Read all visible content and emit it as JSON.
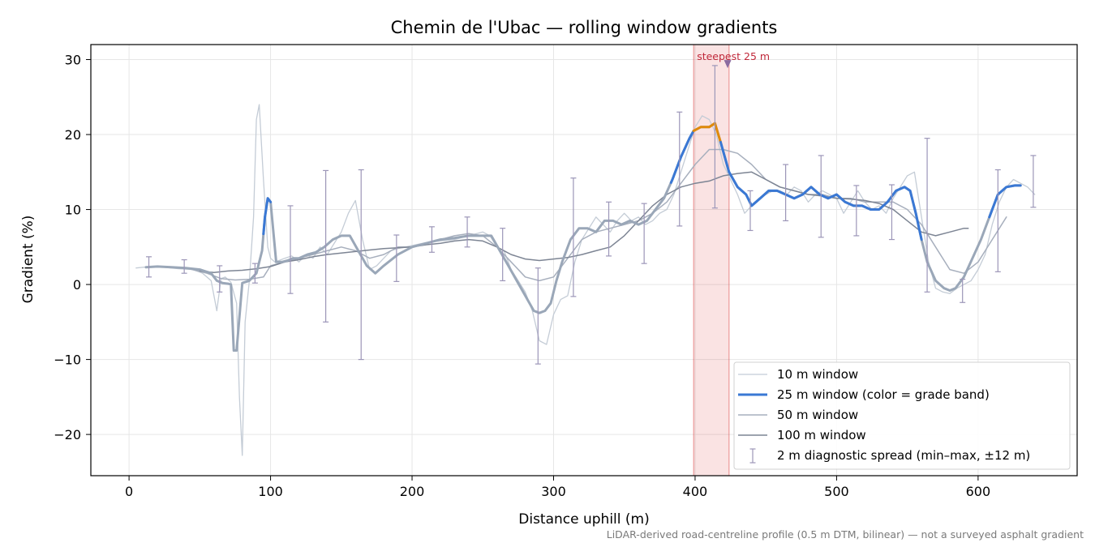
{
  "chart_data": {
    "type": "line",
    "title": "Chemin de l'Ubac — rolling window gradients",
    "xlabel": "Distance uphill (m)",
    "ylabel": "Gradient (%)",
    "xlim": [
      -27,
      670
    ],
    "ylim": [
      -25.5,
      32
    ],
    "xticks": [
      0,
      100,
      200,
      300,
      400,
      500,
      600
    ],
    "yticks": [
      -20,
      -10,
      0,
      10,
      20,
      30
    ],
    "grid": true,
    "legend_position": "lower-right",
    "footnote": "LiDAR-derived road-centreline profile (0.5 m DTM, bilinear) — not a surveyed asphalt gradient",
    "annotation": {
      "text": "steepest 25 m",
      "x": 423,
      "y": 29.5
    },
    "highlight": {
      "x0": 399,
      "x1": 424,
      "color": "#d62728"
    },
    "colors": {
      "band_blue": "#3a78d4",
      "band_orange": "#e08a0b",
      "marker": "#8a6aa0",
      "annotation": "#c0283a"
    },
    "series": [
      {
        "name": "10 m window",
        "color": "#c4ccd6",
        "width": 1.3,
        "x": [
          5,
          15,
          25,
          35,
          45,
          52,
          58,
          62,
          65,
          68,
          72,
          76,
          78,
          80,
          82,
          85,
          88,
          90,
          92,
          95,
          98,
          100,
          103,
          106,
          110,
          115,
          120,
          125,
          130,
          135,
          140,
          145,
          150,
          155,
          160,
          165,
          170,
          175,
          180,
          185,
          190,
          200,
          210,
          220,
          230,
          240,
          250,
          255,
          260,
          265,
          270,
          275,
          280,
          285,
          290,
          295,
          300,
          305,
          310,
          315,
          320,
          325,
          330,
          335,
          340,
          345,
          350,
          355,
          360,
          365,
          370,
          375,
          380,
          385,
          390,
          395,
          400,
          405,
          410,
          415,
          420,
          425,
          430,
          435,
          440,
          445,
          450,
          455,
          460,
          465,
          470,
          475,
          480,
          485,
          490,
          495,
          500,
          505,
          510,
          515,
          520,
          525,
          530,
          535,
          540,
          545,
          550,
          555,
          560,
          565,
          570,
          575,
          580,
          585,
          590,
          595,
          600,
          605,
          610,
          615,
          620,
          625,
          630,
          635,
          640
        ],
        "y": [
          2.2,
          2.4,
          2.3,
          2.1,
          2.0,
          1.5,
          0.5,
          -3.5,
          0.8,
          1.0,
          0.3,
          -2.5,
          -15,
          -22.8,
          -5,
          0.5,
          9,
          22,
          24,
          14,
          5,
          3.5,
          3.0,
          3.2,
          3.5,
          3.8,
          3.0,
          4.0,
          3.5,
          5.0,
          4.0,
          5.5,
          7.0,
          9.5,
          11.2,
          6.0,
          2.0,
          2.5,
          3.5,
          4.5,
          4.8,
          5.2,
          5.6,
          5.8,
          6.0,
          6.5,
          7.0,
          6.5,
          5.0,
          4.5,
          2.0,
          0.5,
          -1.0,
          -3.5,
          -7.5,
          -8.0,
          -4.0,
          -2.0,
          -1.5,
          3.0,
          6.0,
          7.5,
          9.0,
          8.0,
          7.0,
          8.5,
          9.5,
          8.5,
          9.0,
          8.0,
          8.5,
          9.5,
          10.0,
          12.0,
          15.0,
          18.0,
          21.0,
          22.5,
          22.0,
          20.0,
          16.0,
          14.0,
          12.0,
          9.5,
          10.5,
          11.5,
          12.0,
          12.5,
          12.5,
          12.0,
          13.0,
          12.5,
          11.0,
          12.0,
          12.5,
          12.0,
          11.5,
          9.5,
          11.0,
          12.5,
          11.0,
          10.0,
          10.5,
          9.5,
          11.5,
          13.0,
          14.5,
          15.0,
          9.0,
          3.0,
          -0.5,
          -1.0,
          -1.2,
          -0.5,
          0.0,
          0.5,
          2.0,
          4.0,
          8.0,
          11.0,
          13.0,
          14.0,
          13.5,
          13.0,
          12.0
        ]
      },
      {
        "name": "25 m window (color = grade band)",
        "color": "#9aa7b8",
        "width": 3,
        "x": [
          12,
          20,
          30,
          40,
          50,
          58,
          62,
          66,
          70,
          72,
          74,
          76,
          80,
          85,
          90,
          94,
          96,
          98,
          100,
          104,
          108,
          112,
          116,
          120,
          126,
          132,
          138,
          144,
          150,
          156,
          162,
          168,
          174,
          180,
          190,
          200,
          210,
          220,
          230,
          240,
          250,
          256,
          262,
          268,
          274,
          280,
          286,
          290,
          294,
          298,
          302,
          306,
          312,
          318,
          324,
          330,
          336,
          342,
          348,
          354,
          360,
          366,
          372,
          378,
          384,
          390,
          396,
          399,
          404,
          410,
          414,
          418,
          424,
          430,
          436,
          440,
          446,
          452,
          458,
          464,
          470,
          476,
          482,
          488,
          494,
          500,
          506,
          512,
          518,
          524,
          530,
          536,
          542,
          548,
          552,
          556,
          560,
          564,
          570,
          576,
          580,
          584,
          590,
          596,
          602,
          608,
          614,
          620,
          626,
          630
        ],
        "y": [
          2.3,
          2.4,
          2.3,
          2.2,
          2.0,
          1.5,
          0.5,
          0.2,
          0.1,
          0.0,
          -8.8,
          -8.8,
          0.2,
          0.5,
          1.5,
          4.5,
          9.0,
          11.5,
          11.0,
          3.0,
          3.0,
          3.2,
          3.5,
          3.5,
          4.0,
          4.3,
          5.0,
          6.0,
          6.5,
          6.5,
          4.5,
          2.5,
          1.5,
          2.5,
          4.0,
          5.0,
          5.5,
          6.0,
          6.2,
          6.5,
          6.5,
          6.5,
          4.5,
          2.5,
          0.5,
          -1.5,
          -3.5,
          -3.8,
          -3.5,
          -2.5,
          0.5,
          3.0,
          6.0,
          7.5,
          7.5,
          7.0,
          8.5,
          8.5,
          8.0,
          8.5,
          8.0,
          8.5,
          10.0,
          11.5,
          14.0,
          17.0,
          19.5,
          20.5,
          21.0,
          21.0,
          21.5,
          19.0,
          15.0,
          13.0,
          12.0,
          10.5,
          11.5,
          12.5,
          12.5,
          12.0,
          11.5,
          12.0,
          13.0,
          12.0,
          11.5,
          12.0,
          11.0,
          10.5,
          10.5,
          10.0,
          10.0,
          11.0,
          12.5,
          13.0,
          12.5,
          9.5,
          6.0,
          3.0,
          0.5,
          -0.5,
          -0.8,
          -0.5,
          1.0,
          3.5,
          6.0,
          9.0,
          12.0,
          13.0,
          13.2,
          13.2
        ],
        "segments": [
          {
            "x0": 95,
            "x1": 100,
            "color": "#3a78d4"
          },
          {
            "x0": 383,
            "x1": 399,
            "color": "#3a78d4"
          },
          {
            "x0": 399,
            "x1": 418,
            "color": "#e08a0b"
          },
          {
            "x0": 418,
            "x1": 560,
            "color": "#3a78d4"
          },
          {
            "x0": 608,
            "x1": 630,
            "color": "#3a78d4"
          }
        ]
      },
      {
        "name": "50 m window",
        "color": "#a7afbd",
        "width": 1.5,
        "x": [
          25,
          40,
          55,
          65,
          75,
          85,
          95,
          100,
          110,
          120,
          130,
          140,
          150,
          160,
          170,
          180,
          190,
          200,
          210,
          220,
          230,
          240,
          250,
          260,
          270,
          280,
          290,
          300,
          310,
          320,
          330,
          340,
          350,
          360,
          370,
          380,
          390,
          400,
          410,
          420,
          430,
          440,
          450,
          460,
          470,
          480,
          490,
          500,
          510,
          520,
          530,
          540,
          550,
          560,
          570,
          580,
          590,
          600,
          610,
          620
        ],
        "y": [
          2.3,
          2.2,
          1.5,
          0.8,
          0.6,
          0.7,
          1.0,
          2.5,
          3.0,
          3.5,
          4.0,
          4.5,
          5.0,
          4.5,
          3.5,
          4.0,
          5.0,
          5.0,
          5.5,
          6.0,
          6.5,
          6.8,
          6.5,
          5.0,
          3.0,
          1.0,
          0.5,
          1.0,
          3.5,
          6.0,
          7.0,
          7.5,
          8.0,
          8.5,
          9.5,
          11.0,
          13.5,
          16.0,
          18.0,
          18.0,
          17.5,
          16.0,
          14.0,
          13.0,
          12.5,
          12.0,
          12.0,
          11.5,
          11.5,
          11.0,
          11.0,
          11.0,
          10.0,
          8.0,
          5.0,
          2.0,
          1.5,
          3.0,
          6.0,
          9.0
        ]
      },
      {
        "name": "100 m window",
        "color": "#7d8594",
        "width": 1.5,
        "x": [
          50,
          60,
          70,
          80,
          90,
          100,
          110,
          120,
          130,
          140,
          150,
          160,
          170,
          180,
          190,
          200,
          210,
          220,
          230,
          240,
          250,
          260,
          270,
          280,
          290,
          300,
          310,
          320,
          330,
          340,
          350,
          360,
          370,
          380,
          390,
          400,
          410,
          420,
          430,
          440,
          450,
          460,
          470,
          480,
          490,
          500,
          510,
          520,
          530,
          540,
          550,
          560,
          570,
          580,
          590,
          593
        ],
        "y": [
          1.8,
          1.6,
          1.8,
          1.9,
          2.1,
          2.4,
          3.0,
          3.3,
          3.7,
          4.0,
          4.2,
          4.4,
          4.6,
          4.8,
          4.9,
          5.0,
          5.3,
          5.5,
          5.8,
          6.0,
          5.8,
          5.0,
          4.0,
          3.4,
          3.2,
          3.4,
          3.6,
          4.0,
          4.5,
          5.0,
          6.5,
          8.5,
          10.5,
          12.0,
          13.0,
          13.5,
          13.8,
          14.5,
          14.8,
          15.0,
          14.0,
          13.0,
          12.5,
          12.0,
          11.8,
          11.5,
          11.4,
          11.2,
          10.8,
          10.0,
          8.5,
          7.0,
          6.5,
          7.0,
          7.5,
          7.5
        ]
      }
    ],
    "spread": {
      "name": "2 m diagnostic spread (min–max, ±12 m)",
      "color": "#9c96b8",
      "items": [
        {
          "x": 14,
          "low": 1.0,
          "high": 3.7
        },
        {
          "x": 39,
          "low": 1.5,
          "high": 3.3
        },
        {
          "x": 64,
          "low": -1.0,
          "high": 2.5
        },
        {
          "x": 89,
          "low": 0.2,
          "high": 2.8
        },
        {
          "x": 114,
          "low": -1.2,
          "high": 10.5
        },
        {
          "x": 139,
          "low": -5.0,
          "high": 15.2
        },
        {
          "x": 164,
          "low": -10.0,
          "high": 15.3
        },
        {
          "x": 189,
          "low": 0.4,
          "high": 6.6
        },
        {
          "x": 214,
          "low": 4.3,
          "high": 7.7
        },
        {
          "x": 239,
          "low": 5.0,
          "high": 9.0
        },
        {
          "x": 264,
          "low": 0.5,
          "high": 7.5
        },
        {
          "x": 289,
          "low": -10.6,
          "high": 2.2
        },
        {
          "x": 314,
          "low": -1.6,
          "high": 14.2
        },
        {
          "x": 339,
          "low": 3.8,
          "high": 11.0
        },
        {
          "x": 364,
          "low": 2.8,
          "high": 10.8
        },
        {
          "x": 389,
          "low": 7.8,
          "high": 23.0
        },
        {
          "x": 414,
          "low": 10.2,
          "high": 29.2
        },
        {
          "x": 439,
          "low": 7.2,
          "high": 12.5
        },
        {
          "x": 464,
          "low": 8.5,
          "high": 16.0
        },
        {
          "x": 489,
          "low": 6.3,
          "high": 17.2
        },
        {
          "x": 514,
          "low": 6.5,
          "high": 13.2
        },
        {
          "x": 539,
          "low": 6.0,
          "high": 13.3
        },
        {
          "x": 564,
          "low": -1.0,
          "high": 19.5
        },
        {
          "x": 589,
          "low": -2.4,
          "high": 0.7
        },
        {
          "x": 614,
          "low": 1.7,
          "high": 15.3
        },
        {
          "x": 639,
          "low": 10.3,
          "high": 17.2
        }
      ]
    }
  }
}
